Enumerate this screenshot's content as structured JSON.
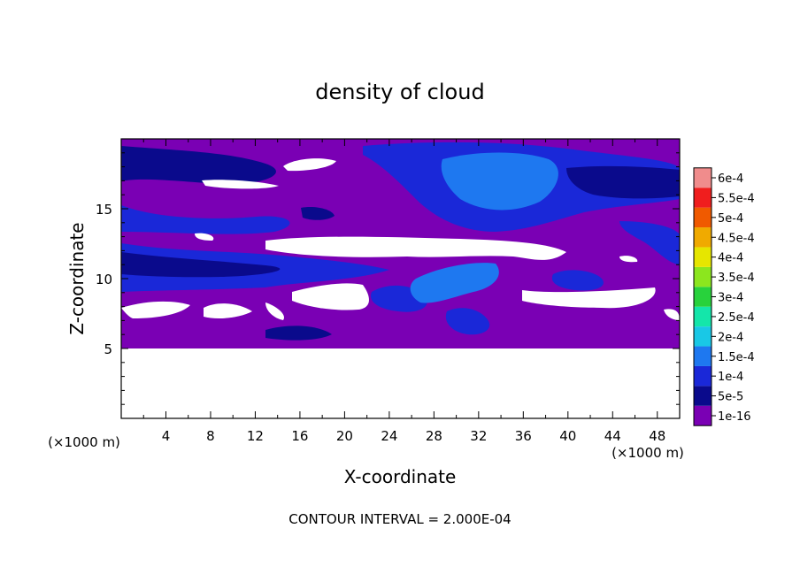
{
  "chart_data": {
    "type": "heatmap",
    "title": "density of cloud",
    "xlabel": "X-coordinate",
    "ylabel": "Z-coordinate",
    "x_unit_label": "(×1000 m)",
    "y_unit_label": "(×1000 m)",
    "footer": "CONTOUR INTERVAL = 2.000E-04",
    "xlim": [
      0,
      50
    ],
    "ylim": [
      0,
      20
    ],
    "x_ticks": [
      4,
      8,
      12,
      16,
      20,
      24,
      28,
      32,
      36,
      40,
      44,
      48
    ],
    "y_ticks": [
      5,
      10,
      15
    ],
    "grid": false,
    "colorbar": {
      "levels": [
        "1e-16",
        "5e-5",
        "1e-4",
        "1.5e-4",
        "2e-4",
        "2.5e-4",
        "3e-4",
        "3.5e-4",
        "4e-4",
        "4.5e-4",
        "5e-4",
        "5.5e-4",
        "6e-4"
      ],
      "colors": [
        "#7a00b4",
        "#0a0a8c",
        "#1a28d8",
        "#1e78f0",
        "#19c8e6",
        "#14e6aa",
        "#28d23c",
        "#8ce61e",
        "#e6e600",
        "#f0aa00",
        "#f05a00",
        "#f01e1e",
        "#f08c8c"
      ]
    },
    "background_level_color": "#7a00b4",
    "data_extent_z": [
      5,
      20
    ]
  }
}
